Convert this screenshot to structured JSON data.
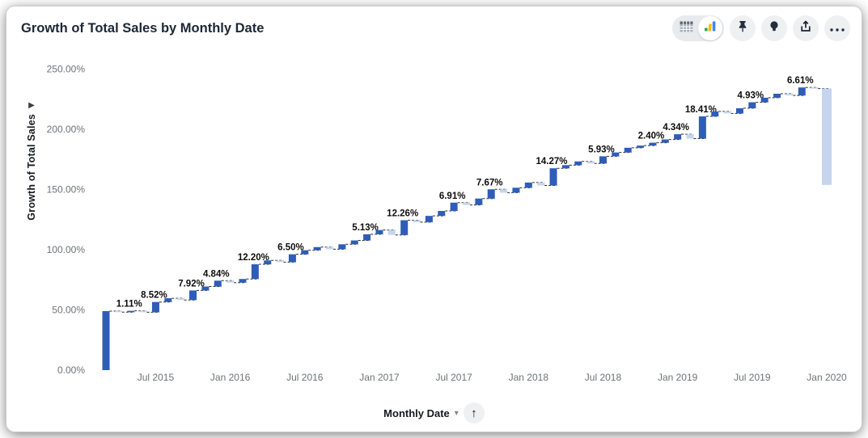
{
  "header": {
    "title": "Growth of Total Sales by Monthly Date"
  },
  "toolbar": {
    "view_toggle": {
      "options": [
        "table-view",
        "chart-view"
      ],
      "selected": "chart-view"
    },
    "chart_icon_colors": {
      "green": "#34a853",
      "yellow": "#fbbc04",
      "blue": "#4285f4"
    },
    "buttons": [
      "pin",
      "insights-lightbulb",
      "export",
      "menu-ellipsis"
    ]
  },
  "x_axis_control": {
    "label": "Monthly Date",
    "caret": "▾",
    "sort_arrow": "↑"
  },
  "chart_data": {
    "type": "waterfall",
    "title": "Growth of Total Sales by Monthly Date",
    "xlabel": "Monthly Date",
    "ylabel": "Growth of Total Sales",
    "ylim": [
      0,
      250
    ],
    "grid": false,
    "legend": "none",
    "colors": {
      "increase": "#2e5db7",
      "decrease": "#c6d5ef",
      "connector": "#2a2a2a"
    },
    "y_ticks": [
      {
        "label": "0.00%",
        "value": 0
      },
      {
        "label": "50.00%",
        "value": 50
      },
      {
        "label": "100.00%",
        "value": 100
      },
      {
        "label": "150.00%",
        "value": 150
      },
      {
        "label": "200.00%",
        "value": 200
      },
      {
        "label": "250.00%",
        "value": 250
      }
    ],
    "x_ticks": [
      {
        "label": "Jul 2015",
        "index": 4
      },
      {
        "label": "Jan 2016",
        "index": 10
      },
      {
        "label": "Jul 2016",
        "index": 16
      },
      {
        "label": "Jan 2017",
        "index": 22
      },
      {
        "label": "Jul 2017",
        "index": 28
      },
      {
        "label": "Jan 2018",
        "index": 34
      },
      {
        "label": "Jul 2018",
        "index": 40
      },
      {
        "label": "Jan 2019",
        "index": 46
      },
      {
        "label": "Jul 2019",
        "index": 52
      },
      {
        "label": "Jan 2020",
        "index": 58
      }
    ],
    "bars": [
      {
        "month": "Mar 2015",
        "delta": 49.0
      },
      {
        "month": "Apr 2015",
        "delta": -0.85
      },
      {
        "month": "May 2015",
        "delta": 1.11,
        "label": "1.11%"
      },
      {
        "month": "Jun 2015",
        "delta": -1.2
      },
      {
        "month": "Jul 2015",
        "delta": 8.52,
        "label": "8.52%"
      },
      {
        "month": "Aug 2015",
        "delta": 3.1
      },
      {
        "month": "Sep 2015",
        "delta": -1.45
      },
      {
        "month": "Oct 2015",
        "delta": 7.92,
        "label": "7.92%"
      },
      {
        "month": "Nov 2015",
        "delta": 3.3
      },
      {
        "month": "Dec 2015",
        "delta": 4.84,
        "label": "4.84%"
      },
      {
        "month": "Jan 2016",
        "delta": -1.6
      },
      {
        "month": "Feb 2016",
        "delta": 3.0
      },
      {
        "month": "Mar 2016",
        "delta": 12.2,
        "label": "12.20%"
      },
      {
        "month": "Apr 2016",
        "delta": 3.2
      },
      {
        "month": "May 2016",
        "delta": -1.4
      },
      {
        "month": "Jun 2016",
        "delta": 6.5,
        "label": "6.50%"
      },
      {
        "month": "Jul 2016",
        "delta": 3.4
      },
      {
        "month": "Aug 2016",
        "delta": 2.6
      },
      {
        "month": "Sep 2016",
        "delta": -1.8
      },
      {
        "month": "Oct 2016",
        "delta": 4.1
      },
      {
        "month": "Nov 2016",
        "delta": 3.2
      },
      {
        "month": "Dec 2016",
        "delta": 5.13,
        "label": "5.13%"
      },
      {
        "month": "Jan 2017",
        "delta": 3.5
      },
      {
        "month": "Feb 2017",
        "delta": -4.1
      },
      {
        "month": "Mar 2017",
        "delta": 12.26,
        "label": "12.26%"
      },
      {
        "month": "Apr 2017",
        "delta": -1.6
      },
      {
        "month": "May 2017",
        "delta": 5.2
      },
      {
        "month": "Jun 2017",
        "delta": 4.1
      },
      {
        "month": "Jul 2017",
        "delta": 6.91,
        "label": "6.91%"
      },
      {
        "month": "Aug 2017",
        "delta": -1.9
      },
      {
        "month": "Sep 2017",
        "delta": 5.3
      },
      {
        "month": "Oct 2017",
        "delta": 7.67,
        "label": "7.67%"
      },
      {
        "month": "Nov 2017",
        "delta": -2.8
      },
      {
        "month": "Dec 2017",
        "delta": 4.1
      },
      {
        "month": "Jan 2018",
        "delta": 4.3
      },
      {
        "month": "Feb 2018",
        "delta": -2.4
      },
      {
        "month": "Mar 2018",
        "delta": 14.27,
        "label": "14.27%"
      },
      {
        "month": "Apr 2018",
        "delta": 2.6
      },
      {
        "month": "May 2018",
        "delta": 3.1
      },
      {
        "month": "Jun 2018",
        "delta": -1.7
      },
      {
        "month": "Jul 2018",
        "delta": 5.93,
        "label": "5.93%"
      },
      {
        "month": "Aug 2018",
        "delta": 3.2
      },
      {
        "month": "Sep 2018",
        "delta": 3.9
      },
      {
        "month": "Oct 2018",
        "delta": 1.8
      },
      {
        "month": "Nov 2018",
        "delta": 2.4,
        "label": "2.40%"
      },
      {
        "month": "Dec 2018",
        "delta": 2.7
      },
      {
        "month": "Jan 2019",
        "delta": 4.34,
        "label": "4.34%"
      },
      {
        "month": "Feb 2019",
        "delta": -3.6
      },
      {
        "month": "Mar 2019",
        "delta": 18.41,
        "label": "18.41%"
      },
      {
        "month": "Apr 2019",
        "delta": 4.1
      },
      {
        "month": "May 2019",
        "delta": -1.6
      },
      {
        "month": "Jun 2019",
        "delta": 4.3
      },
      {
        "month": "Jul 2019",
        "delta": 4.93,
        "label": "4.93%"
      },
      {
        "month": "Aug 2019",
        "delta": 3.8
      },
      {
        "month": "Sep 2019",
        "delta": 3.3
      },
      {
        "month": "Oct 2019",
        "delta": -1.4
      },
      {
        "month": "Nov 2019",
        "delta": 6.61,
        "label": "6.61%"
      },
      {
        "month": "Dec 2019",
        "delta": -0.95
      },
      {
        "month": "Jan 2020",
        "delta": -80.0
      }
    ]
  }
}
